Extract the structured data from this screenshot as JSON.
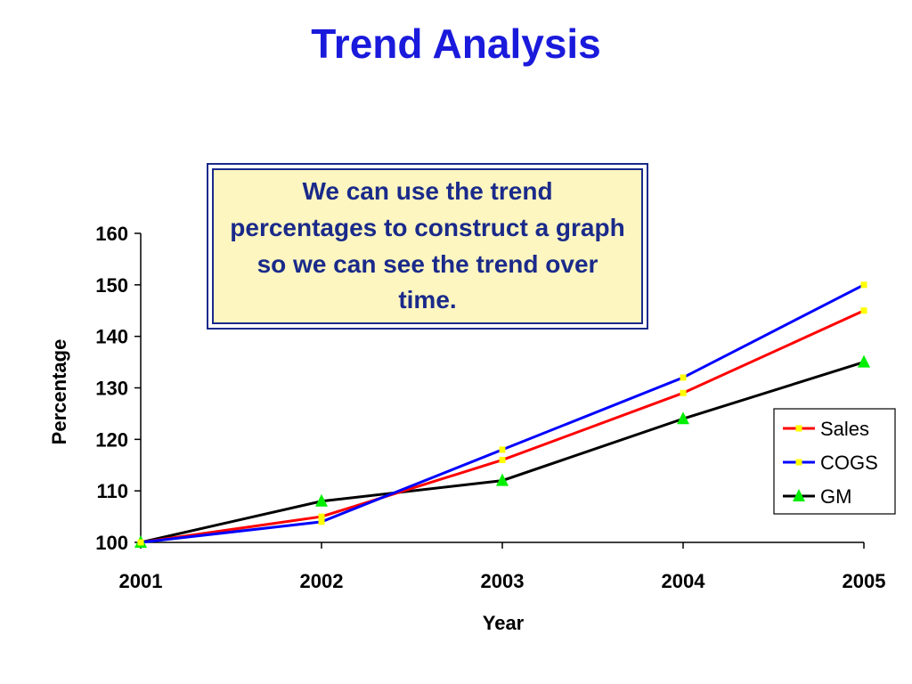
{
  "slide": {
    "title": "Trend Analysis"
  },
  "callout": {
    "text": "We can use the trend percentages to construct a graph so we can see the trend over time."
  },
  "chart_data": {
    "type": "line",
    "title": "",
    "xlabel": "Year",
    "ylabel": "Percentage",
    "categories": [
      "2001",
      "2002",
      "2003",
      "2004",
      "2005"
    ],
    "ylim": [
      100,
      160
    ],
    "yticks": [
      100,
      110,
      120,
      130,
      140,
      150,
      160
    ],
    "grid": false,
    "legend_position": "right",
    "series": [
      {
        "name": "Sales",
        "values": [
          100,
          105,
          116,
          129,
          145
        ],
        "color": "#ff0000",
        "marker": "square",
        "marker_color": "#ffff00"
      },
      {
        "name": "COGS",
        "values": [
          100,
          104,
          118,
          132,
          150
        ],
        "color": "#0000ff",
        "marker": "square",
        "marker_color": "#ffff00"
      },
      {
        "name": "GM",
        "values": [
          100,
          108,
          112,
          124,
          135
        ],
        "color": "#000000",
        "marker": "triangle",
        "marker_color": "#00ee00"
      }
    ]
  }
}
